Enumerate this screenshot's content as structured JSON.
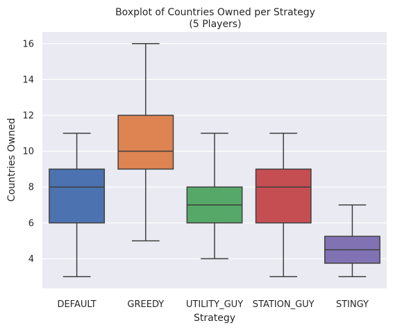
{
  "chart_data": {
    "type": "boxplot",
    "title": "Boxplot of Countries Owned per Strategy",
    "subtitle": "(5 Players)",
    "xlabel": "Strategy",
    "ylabel": "Countries Owned",
    "ylim": [
      2.35,
      16.65
    ],
    "yticks": [
      4,
      6,
      8,
      10,
      12,
      14,
      16
    ],
    "grid": true,
    "categories": [
      "DEFAULT",
      "GREEDY",
      "UTILITY_GUY",
      "STATION_GUY",
      "STINGY"
    ],
    "boxes": [
      {
        "category": "DEFAULT",
        "min": 3,
        "q1": 6,
        "median": 8,
        "q3": 9,
        "max": 11,
        "color": "#4c72b0"
      },
      {
        "category": "GREEDY",
        "min": 5,
        "q1": 9,
        "median": 10,
        "q3": 12,
        "max": 16,
        "color": "#dd8452"
      },
      {
        "category": "UTILITY_GUY",
        "min": 4,
        "q1": 6,
        "median": 7,
        "q3": 8,
        "max": 11,
        "color": "#55a868"
      },
      {
        "category": "STATION_GUY",
        "min": 3,
        "q1": 6,
        "median": 8,
        "q3": 9,
        "max": 11,
        "color": "#c44e52"
      },
      {
        "category": "STINGY",
        "min": 3,
        "q1": 3.75,
        "median": 4.5,
        "q3": 5.25,
        "max": 7,
        "color": "#8172b3"
      }
    ],
    "background_color": "#eaeaf2",
    "line_color": "#3f3f3f"
  }
}
